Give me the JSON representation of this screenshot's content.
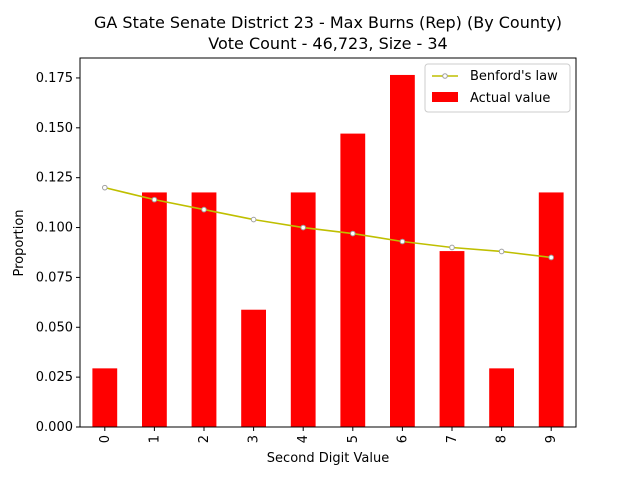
{
  "chart_data": {
    "type": "bar",
    "title_line1": "GA State Senate District 23 - Max Burns (Rep) (By County)",
    "title_line2": "Vote Count - 46,723, Size - 34",
    "xlabel": "Second Digit Value",
    "ylabel": "Proportion",
    "categories": [
      "0",
      "1",
      "2",
      "3",
      "4",
      "5",
      "6",
      "7",
      "8",
      "9"
    ],
    "ylim": [
      0,
      0.185
    ],
    "yticks": [
      "0.000",
      "0.025",
      "0.050",
      "0.075",
      "0.100",
      "0.125",
      "0.150",
      "0.175"
    ],
    "grid": false,
    "legend_position": "top-right",
    "series": [
      {
        "name": "Benford's law",
        "kind": "line",
        "color": "#bfbf00",
        "marker_color": "#a0a0a0",
        "values": [
          0.12,
          0.114,
          0.109,
          0.104,
          0.1,
          0.097,
          0.093,
          0.09,
          0.088,
          0.085
        ]
      },
      {
        "name": "Actual value",
        "kind": "bar",
        "color": "#ff0000",
        "values": [
          0.0294,
          0.1176,
          0.1176,
          0.0588,
          0.1176,
          0.1471,
          0.1765,
          0.0882,
          0.0294,
          0.1176
        ]
      }
    ]
  }
}
